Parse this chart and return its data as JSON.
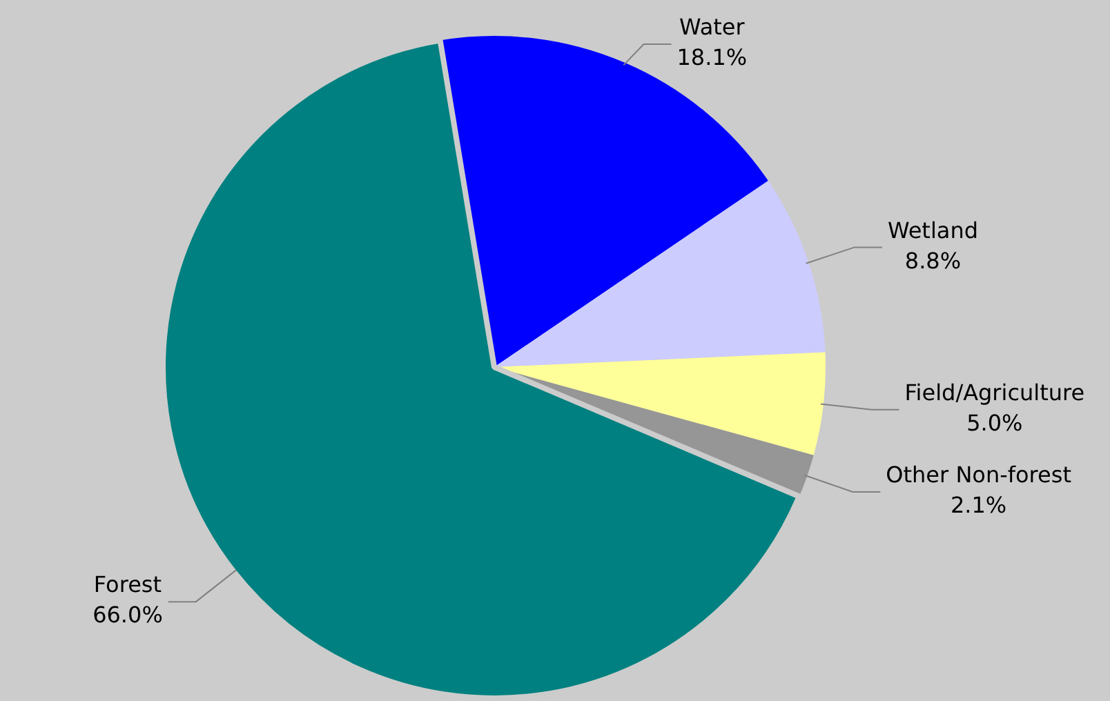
{
  "chart_data": {
    "type": "pie",
    "categories": [
      "Water",
      "Wetland",
      "Field/Agriculture",
      "Other Non-forest",
      "Forest"
    ],
    "values": [
      18.1,
      8.8,
      5.0,
      2.1,
      66.0
    ],
    "colors": [
      "#0000ff",
      "#ccccff",
      "#ffff99",
      "#969696",
      "#008080"
    ],
    "value_labels": [
      "18.1%",
      "8.8%",
      "5.0%",
      "2.1%",
      "66.0%"
    ],
    "legend": false
  }
}
